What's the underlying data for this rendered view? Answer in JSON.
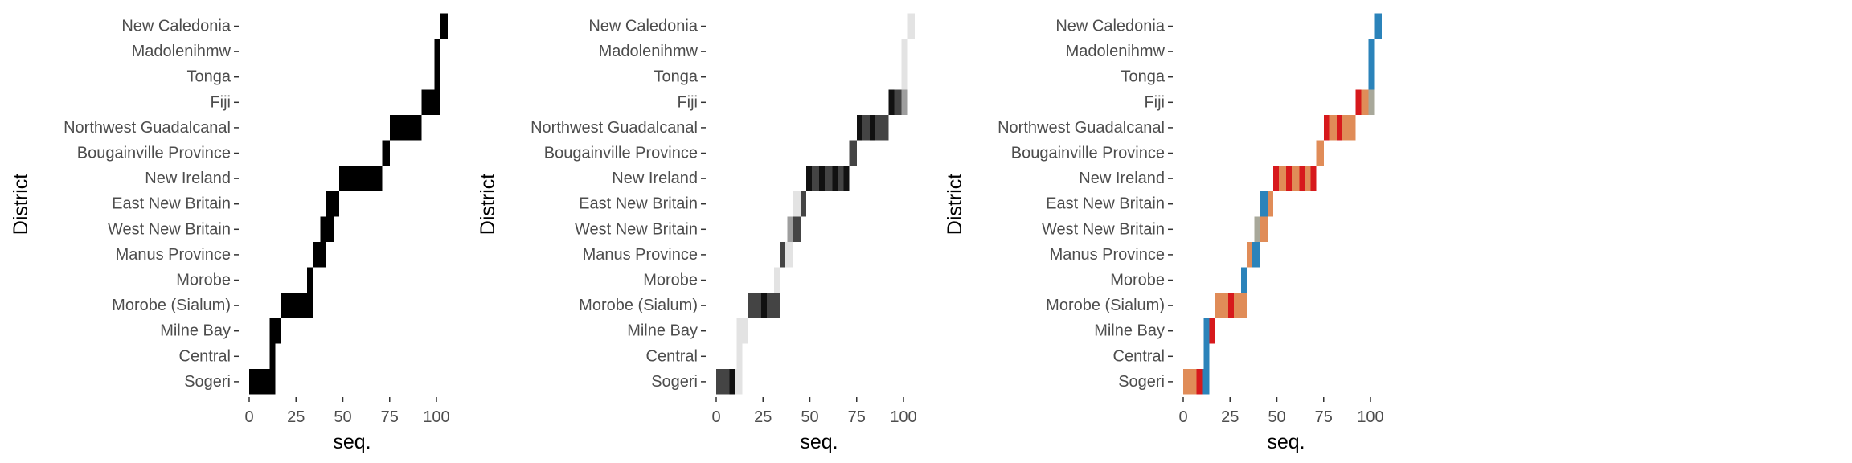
{
  "chart_data": [
    {
      "type": "heatmap",
      "panel": "monochrome",
      "xlabel": "seq.",
      "ylabel": "District",
      "xlim": [
        0,
        106
      ],
      "xticks": [
        0,
        25,
        50,
        75,
        100
      ],
      "grid": false,
      "categories": [
        "Sogeri",
        "Central",
        "Milne Bay",
        "Morobe (Sialum)",
        "Morobe",
        "Manus Province",
        "West New Britain",
        "East New Britain",
        "New Ireland",
        "Bougainville Province",
        "Northwest Guadalcanal",
        "Fiji",
        "Tonga",
        "Madolenihmw",
        "New Caledonia"
      ],
      "tiles": [
        {
          "district": "Sogeri",
          "start": 0,
          "end": 14,
          "color": "#000000"
        },
        {
          "district": "Central",
          "start": 11,
          "end": 14,
          "color": "#000000"
        },
        {
          "district": "Milne Bay",
          "start": 11,
          "end": 17,
          "color": "#000000"
        },
        {
          "district": "Morobe (Sialum)",
          "start": 17,
          "end": 34,
          "color": "#000000"
        },
        {
          "district": "Morobe",
          "start": 31,
          "end": 34,
          "color": "#000000"
        },
        {
          "district": "Manus Province",
          "start": 34,
          "end": 41,
          "color": "#000000"
        },
        {
          "district": "West New Britain",
          "start": 38,
          "end": 45,
          "color": "#000000"
        },
        {
          "district": "East New Britain",
          "start": 41,
          "end": 48,
          "color": "#000000"
        },
        {
          "district": "New Ireland",
          "start": 48,
          "end": 71,
          "color": "#000000"
        },
        {
          "district": "Bougainville Province",
          "start": 71,
          "end": 75,
          "color": "#000000"
        },
        {
          "district": "Northwest Guadalcanal",
          "start": 75,
          "end": 92,
          "color": "#000000"
        },
        {
          "district": "Fiji",
          "start": 92,
          "end": 102,
          "color": "#000000"
        },
        {
          "district": "Tonga",
          "start": 99,
          "end": 102,
          "color": "#000000"
        },
        {
          "district": "Madolenihmw",
          "start": 99,
          "end": 102,
          "color": "#000000"
        },
        {
          "district": "New Caledonia",
          "start": 102,
          "end": 106,
          "color": "#000000"
        }
      ]
    },
    {
      "type": "heatmap",
      "panel": "grayscale",
      "xlabel": "seq.",
      "ylabel": "District",
      "xlim": [
        0,
        106
      ],
      "xticks": [
        0,
        25,
        50,
        75,
        100
      ],
      "grid": false,
      "categories": [
        "Sogeri",
        "Central",
        "Milne Bay",
        "Morobe (Sialum)",
        "Morobe",
        "Manus Province",
        "West New Britain",
        "East New Britain",
        "New Ireland",
        "Bougainville Province",
        "Northwest Guadalcanal",
        "Fiji",
        "Tonga",
        "Madolenihmw",
        "New Caledonia"
      ],
      "tiles": [
        {
          "district": "Sogeri",
          "start": 0,
          "end": 7,
          "color": "#444444"
        },
        {
          "district": "Sogeri",
          "start": 7,
          "end": 10,
          "color": "#111111"
        },
        {
          "district": "Sogeri",
          "start": 10,
          "end": 14,
          "color": "#e3e3e3"
        },
        {
          "district": "Central",
          "start": 11,
          "end": 14,
          "color": "#e3e3e3"
        },
        {
          "district": "Milne Bay",
          "start": 11,
          "end": 17,
          "color": "#e3e3e3"
        },
        {
          "district": "Morobe (Sialum)",
          "start": 17,
          "end": 24,
          "color": "#444444"
        },
        {
          "district": "Morobe (Sialum)",
          "start": 24,
          "end": 27,
          "color": "#111111"
        },
        {
          "district": "Morobe (Sialum)",
          "start": 27,
          "end": 34,
          "color": "#444444"
        },
        {
          "district": "Morobe",
          "start": 31,
          "end": 34,
          "color": "#e3e3e3"
        },
        {
          "district": "Manus Province",
          "start": 34,
          "end": 37,
          "color": "#444444"
        },
        {
          "district": "Manus Province",
          "start": 37,
          "end": 41,
          "color": "#e3e3e3"
        },
        {
          "district": "West New Britain",
          "start": 38,
          "end": 41,
          "color": "#9e9e9e"
        },
        {
          "district": "West New Britain",
          "start": 41,
          "end": 45,
          "color": "#444444"
        },
        {
          "district": "East New Britain",
          "start": 41,
          "end": 45,
          "color": "#e3e3e3"
        },
        {
          "district": "East New Britain",
          "start": 45,
          "end": 48,
          "color": "#444444"
        },
        {
          "district": "New Ireland",
          "start": 48,
          "end": 51,
          "color": "#111111"
        },
        {
          "district": "New Ireland",
          "start": 51,
          "end": 55,
          "color": "#444444"
        },
        {
          "district": "New Ireland",
          "start": 55,
          "end": 58,
          "color": "#111111"
        },
        {
          "district": "New Ireland",
          "start": 58,
          "end": 62,
          "color": "#444444"
        },
        {
          "district": "New Ireland",
          "start": 62,
          "end": 65,
          "color": "#111111"
        },
        {
          "district": "New Ireland",
          "start": 65,
          "end": 68,
          "color": "#444444"
        },
        {
          "district": "New Ireland",
          "start": 68,
          "end": 71,
          "color": "#111111"
        },
        {
          "district": "Bougainville Province",
          "start": 71,
          "end": 75,
          "color": "#444444"
        },
        {
          "district": "Northwest Guadalcanal",
          "start": 75,
          "end": 78,
          "color": "#111111"
        },
        {
          "district": "Northwest Guadalcanal",
          "start": 78,
          "end": 82,
          "color": "#444444"
        },
        {
          "district": "Northwest Guadalcanal",
          "start": 82,
          "end": 85,
          "color": "#111111"
        },
        {
          "district": "Northwest Guadalcanal",
          "start": 85,
          "end": 92,
          "color": "#444444"
        },
        {
          "district": "Fiji",
          "start": 92,
          "end": 95,
          "color": "#111111"
        },
        {
          "district": "Fiji",
          "start": 95,
          "end": 99,
          "color": "#444444"
        },
        {
          "district": "Fiji",
          "start": 99,
          "end": 102,
          "color": "#9e9e9e"
        },
        {
          "district": "Tonga",
          "start": 99,
          "end": 102,
          "color": "#e3e3e3"
        },
        {
          "district": "Madolenihmw",
          "start": 99,
          "end": 102,
          "color": "#e3e3e3"
        },
        {
          "district": "New Caledonia",
          "start": 102,
          "end": 106,
          "color": "#e3e3e3"
        }
      ]
    },
    {
      "type": "heatmap",
      "panel": "color",
      "xlabel": "seq.",
      "ylabel": "District",
      "xlim": [
        0,
        106
      ],
      "xticks": [
        0,
        25,
        50,
        75,
        100
      ],
      "grid": false,
      "categories": [
        "Sogeri",
        "Central",
        "Milne Bay",
        "Morobe (Sialum)",
        "Morobe",
        "Manus Province",
        "West New Britain",
        "East New Britain",
        "New Ireland",
        "Bougainville Province",
        "Northwest Guadalcanal",
        "Fiji",
        "Tonga",
        "Madolenihmw",
        "New Caledonia"
      ],
      "tiles": [
        {
          "district": "Sogeri",
          "start": 0,
          "end": 7,
          "color": "#e08c58"
        },
        {
          "district": "Sogeri",
          "start": 7,
          "end": 10,
          "color": "#d7191c"
        },
        {
          "district": "Sogeri",
          "start": 10,
          "end": 14,
          "color": "#2b83ba"
        },
        {
          "district": "Central",
          "start": 11,
          "end": 14,
          "color": "#2b83ba"
        },
        {
          "district": "Milne Bay",
          "start": 11,
          "end": 14,
          "color": "#2b83ba"
        },
        {
          "district": "Milne Bay",
          "start": 14,
          "end": 17,
          "color": "#d7191c"
        },
        {
          "district": "Morobe (Sialum)",
          "start": 17,
          "end": 24,
          "color": "#e08c58"
        },
        {
          "district": "Morobe (Sialum)",
          "start": 24,
          "end": 27,
          "color": "#d7191c"
        },
        {
          "district": "Morobe (Sialum)",
          "start": 27,
          "end": 34,
          "color": "#e08c58"
        },
        {
          "district": "Morobe",
          "start": 31,
          "end": 34,
          "color": "#2b83ba"
        },
        {
          "district": "Manus Province",
          "start": 34,
          "end": 37,
          "color": "#e08c58"
        },
        {
          "district": "Manus Province",
          "start": 37,
          "end": 41,
          "color": "#2b83ba"
        },
        {
          "district": "West New Britain",
          "start": 38,
          "end": 41,
          "color": "#a8a89a"
        },
        {
          "district": "West New Britain",
          "start": 41,
          "end": 45,
          "color": "#e08c58"
        },
        {
          "district": "East New Britain",
          "start": 41,
          "end": 45,
          "color": "#2b83ba"
        },
        {
          "district": "East New Britain",
          "start": 45,
          "end": 48,
          "color": "#e08c58"
        },
        {
          "district": "New Ireland",
          "start": 48,
          "end": 51,
          "color": "#d7191c"
        },
        {
          "district": "New Ireland",
          "start": 51,
          "end": 55,
          "color": "#e08c58"
        },
        {
          "district": "New Ireland",
          "start": 55,
          "end": 58,
          "color": "#d7191c"
        },
        {
          "district": "New Ireland",
          "start": 58,
          "end": 62,
          "color": "#e08c58"
        },
        {
          "district": "New Ireland",
          "start": 62,
          "end": 65,
          "color": "#d7191c"
        },
        {
          "district": "New Ireland",
          "start": 65,
          "end": 68,
          "color": "#e08c58"
        },
        {
          "district": "New Ireland",
          "start": 68,
          "end": 71,
          "color": "#d7191c"
        },
        {
          "district": "Bougainville Province",
          "start": 71,
          "end": 75,
          "color": "#e08c58"
        },
        {
          "district": "Northwest Guadalcanal",
          "start": 75,
          "end": 78,
          "color": "#d7191c"
        },
        {
          "district": "Northwest Guadalcanal",
          "start": 78,
          "end": 82,
          "color": "#e08c58"
        },
        {
          "district": "Northwest Guadalcanal",
          "start": 82,
          "end": 85,
          "color": "#d7191c"
        },
        {
          "district": "Northwest Guadalcanal",
          "start": 85,
          "end": 92,
          "color": "#e08c58"
        },
        {
          "district": "Fiji",
          "start": 92,
          "end": 95,
          "color": "#d7191c"
        },
        {
          "district": "Fiji",
          "start": 95,
          "end": 99,
          "color": "#e08c58"
        },
        {
          "district": "Fiji",
          "start": 99,
          "end": 102,
          "color": "#a8a89a"
        },
        {
          "district": "Tonga",
          "start": 99,
          "end": 102,
          "color": "#2b83ba"
        },
        {
          "district": "Madolenihmw",
          "start": 99,
          "end": 102,
          "color": "#2b83ba"
        },
        {
          "district": "New Caledonia",
          "start": 102,
          "end": 106,
          "color": "#2b83ba"
        }
      ]
    }
  ]
}
